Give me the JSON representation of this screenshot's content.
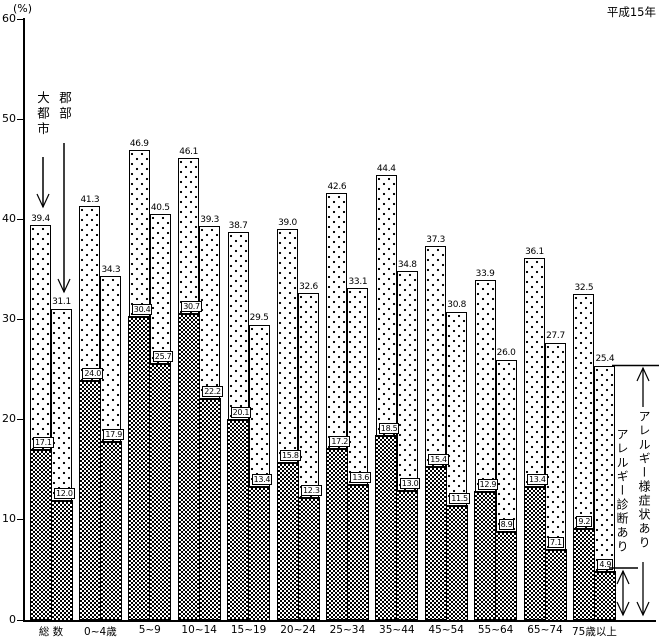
{
  "header": {
    "unit_label": "(%)",
    "era_label": "平成15年"
  },
  "y_axis": {
    "values": [
      60,
      50,
      40,
      30,
      20,
      10,
      0
    ],
    "max": 60
  },
  "annotations": {
    "city_label": "大都市",
    "district_label": "郡部",
    "legend_symptoms": "アレルギー様症状あり",
    "legend_diagnosis": "アレルギー診断あり"
  },
  "chart_data": {
    "type": "bar",
    "title": "平成15年",
    "ylabel": "(%)",
    "ylim": [
      0,
      60
    ],
    "grid": false,
    "layout": "12 category groups, each with a pair of stacked bars: 大都市 (left) and 郡部 (right); bar total = アレルギー様症状あり, lower dark segment = アレルギー診断あり",
    "categories": [
      "総 数",
      "0~4歳",
      "5~9",
      "10~14",
      "15~19",
      "20~24",
      "25~34",
      "35~44",
      "45~54",
      "55~64",
      "65~74",
      "75歳以上"
    ],
    "series": [
      {
        "name": "大都市 アレルギー様症状あり",
        "values": [
          39.4,
          41.3,
          46.9,
          46.1,
          38.7,
          39.0,
          42.6,
          44.4,
          37.3,
          33.9,
          36.1,
          32.5
        ]
      },
      {
        "name": "大都市 アレルギー診断あり",
        "values": [
          17.1,
          24.0,
          30.4,
          30.7,
          20.1,
          15.8,
          17.2,
          18.5,
          15.4,
          12.9,
          13.4,
          9.2
        ]
      },
      {
        "name": "郡部 アレルギー様症状あり",
        "values": [
          31.1,
          34.3,
          40.5,
          39.3,
          29.5,
          32.6,
          33.1,
          34.8,
          30.8,
          26.0,
          27.7,
          25.4
        ]
      },
      {
        "name": "郡部 アレルギー診断あり",
        "values": [
          12.0,
          17.9,
          25.7,
          22.2,
          13.4,
          12.3,
          13.6,
          13.0,
          11.5,
          8.9,
          7.1,
          4.9
        ]
      }
    ]
  }
}
